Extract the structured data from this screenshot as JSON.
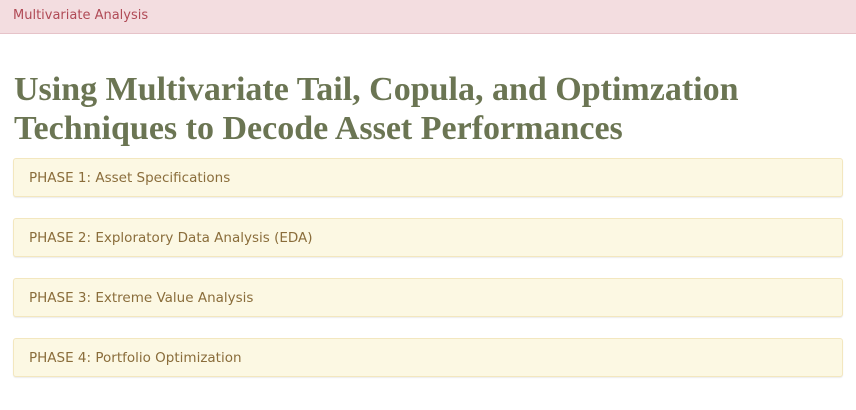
{
  "navbar": {
    "brand": "Multivariate Analysis"
  },
  "page": {
    "title": "Using Multivariate Tail, Copula, and Optimzation Techniques to Decode Asset Performances"
  },
  "phases": [
    {
      "label": "PHASE 1: Asset Specifications"
    },
    {
      "label": "PHASE 2: Exploratory Data Analysis (EDA)"
    },
    {
      "label": "PHASE 3: Extreme Value Analysis"
    },
    {
      "label": "PHASE 4: Portfolio Optimization"
    }
  ],
  "colors": {
    "navbar_bg": "#f3dde0",
    "brand_text": "#b04a56",
    "title_text": "#6b7553",
    "panel_bg": "#fcf8e3",
    "panel_text": "#8a6d3b"
  }
}
